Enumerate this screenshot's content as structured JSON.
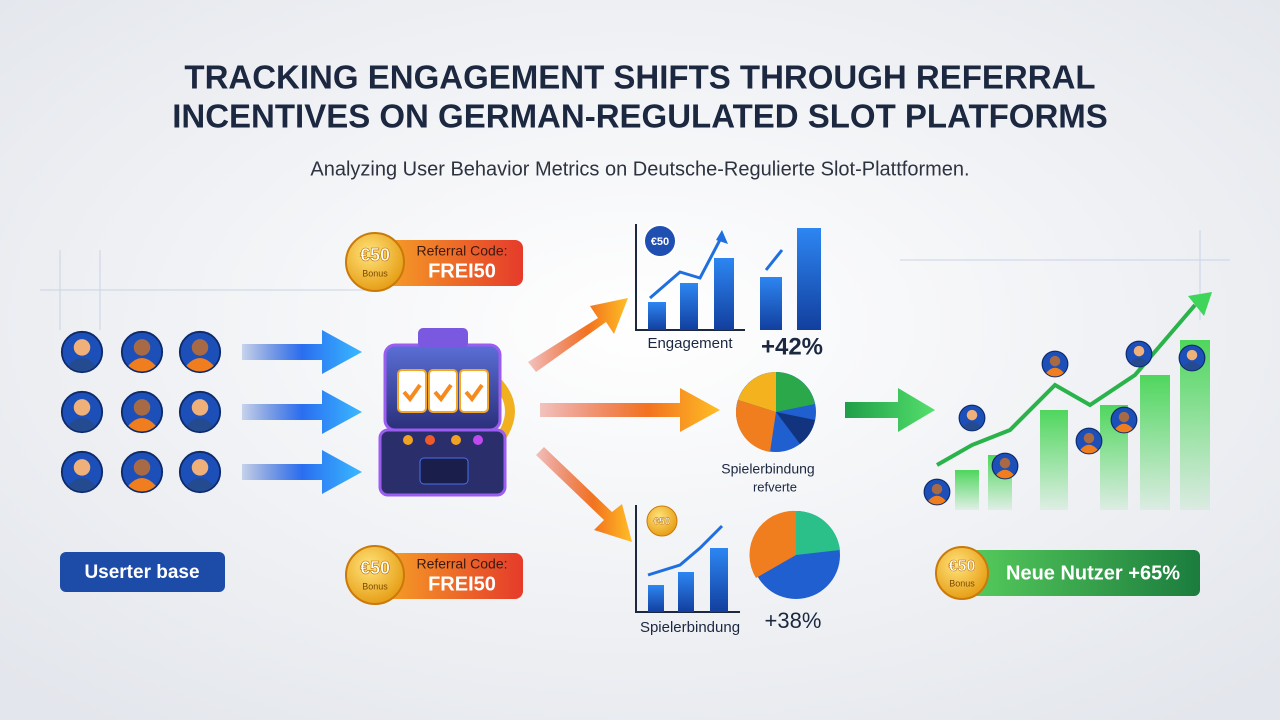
{
  "header": {
    "title_line1": "TRACKING ENGAGEMENT SHIFTS THROUGH REFERRAL",
    "title_line2": "INCENTIVES ON GERMAN-REGULATED SLOT PLATFORMS",
    "subtitle": "Analyzing User Behavior Metrics on Deutsche-Regulierte Slot-Plattformen."
  },
  "user_base": {
    "label": "Userter base"
  },
  "referral_badges": [
    {
      "coin": "€50",
      "coin_sub": "Bonus",
      "label": "Referral Code:",
      "code": "FREI50"
    },
    {
      "coin": "€50",
      "coin_sub": "Bonus",
      "label": "Referral Code:",
      "code": "FREI50"
    }
  ],
  "metrics": [
    {
      "coin": "€50",
      "label": "Engagement",
      "change": "+42%"
    },
    {
      "label": "Spielerbindung",
      "sublabel": "refverte"
    },
    {
      "coin": "€50",
      "label": "Spielerbindung",
      "change": "+38%"
    }
  ],
  "result": {
    "coin": "€50",
    "coin_sub": "Bonus",
    "label": "Neue Nutzer +65%"
  }
}
